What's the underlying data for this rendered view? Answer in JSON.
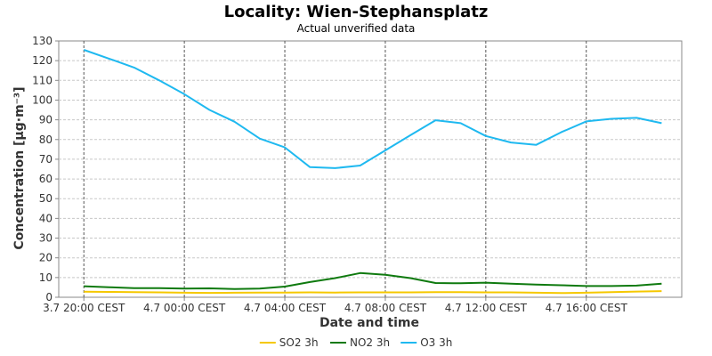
{
  "chart_data": {
    "type": "line",
    "title": "Locality: Wien-Stephansplatz",
    "subtitle": "Actual unverified data",
    "xlabel": "Date and time",
    "ylabel": "Concentration [µg·m⁻³]",
    "ylim": [
      0,
      130
    ],
    "y_ticks": [
      0,
      10,
      20,
      30,
      40,
      50,
      60,
      70,
      80,
      90,
      100,
      110,
      120,
      130
    ],
    "x_tick_labels": [
      "3.7 20:00 CEST",
      "4.7 00:00 CEST",
      "4.7 04:00 CEST",
      "4.7 08:00 CEST",
      "4.7 12:00 CEST",
      "4.7 16:00 CEST"
    ],
    "x_tick_hours": [
      0,
      4,
      8,
      12,
      16,
      20
    ],
    "x_range_hours": [
      -1,
      23.8
    ],
    "grid": true,
    "legend_position": "bottom",
    "series": [
      {
        "name": "SO2 3h",
        "color": "#f5c800",
        "x_hours": [
          0,
          1,
          2,
          3,
          4,
          5,
          6,
          7,
          8,
          9,
          10,
          11,
          12,
          13,
          14,
          15,
          16,
          17,
          18,
          19,
          20,
          21,
          22,
          23
        ],
        "values": [
          2.8,
          2.7,
          2.6,
          2.5,
          2.3,
          2.2,
          2.3,
          2.4,
          2.4,
          2.5,
          2.4,
          2.5,
          2.5,
          2.5,
          2.6,
          2.6,
          2.5,
          2.5,
          2.3,
          2.1,
          2.3,
          2.6,
          2.9,
          3.1
        ]
      },
      {
        "name": "NO2 3h",
        "color": "#0f7a0f",
        "x_hours": [
          0,
          1,
          2,
          3,
          4,
          5,
          6,
          7,
          8,
          9,
          10,
          11,
          12,
          13,
          14,
          15,
          16,
          17,
          18,
          19,
          20,
          21,
          22,
          23
        ],
        "values": [
          5.6,
          5.1,
          4.6,
          4.6,
          4.4,
          4.5,
          4.2,
          4.4,
          5.4,
          7.7,
          9.7,
          12.3,
          11.4,
          9.7,
          7.2,
          7.1,
          7.4,
          6.9,
          6.4,
          6.1,
          5.7,
          5.7,
          5.9,
          6.9
        ]
      },
      {
        "name": "O3 3h",
        "color": "#1fb9f0",
        "x_hours": [
          0,
          1,
          2,
          3,
          4,
          5,
          6,
          7,
          8,
          9,
          10,
          11,
          12,
          13,
          14,
          15,
          16,
          17,
          18,
          19,
          20,
          21,
          22,
          23
        ],
        "values": [
          125.5,
          121,
          116.5,
          110,
          103,
          95,
          89,
          80.5,
          76,
          66,
          65.5,
          66.8,
          74.5,
          82.2,
          89.8,
          88.3,
          81.8,
          78.5,
          77.3,
          83.7,
          89.2,
          90.5,
          91,
          88.3
        ]
      }
    ]
  }
}
